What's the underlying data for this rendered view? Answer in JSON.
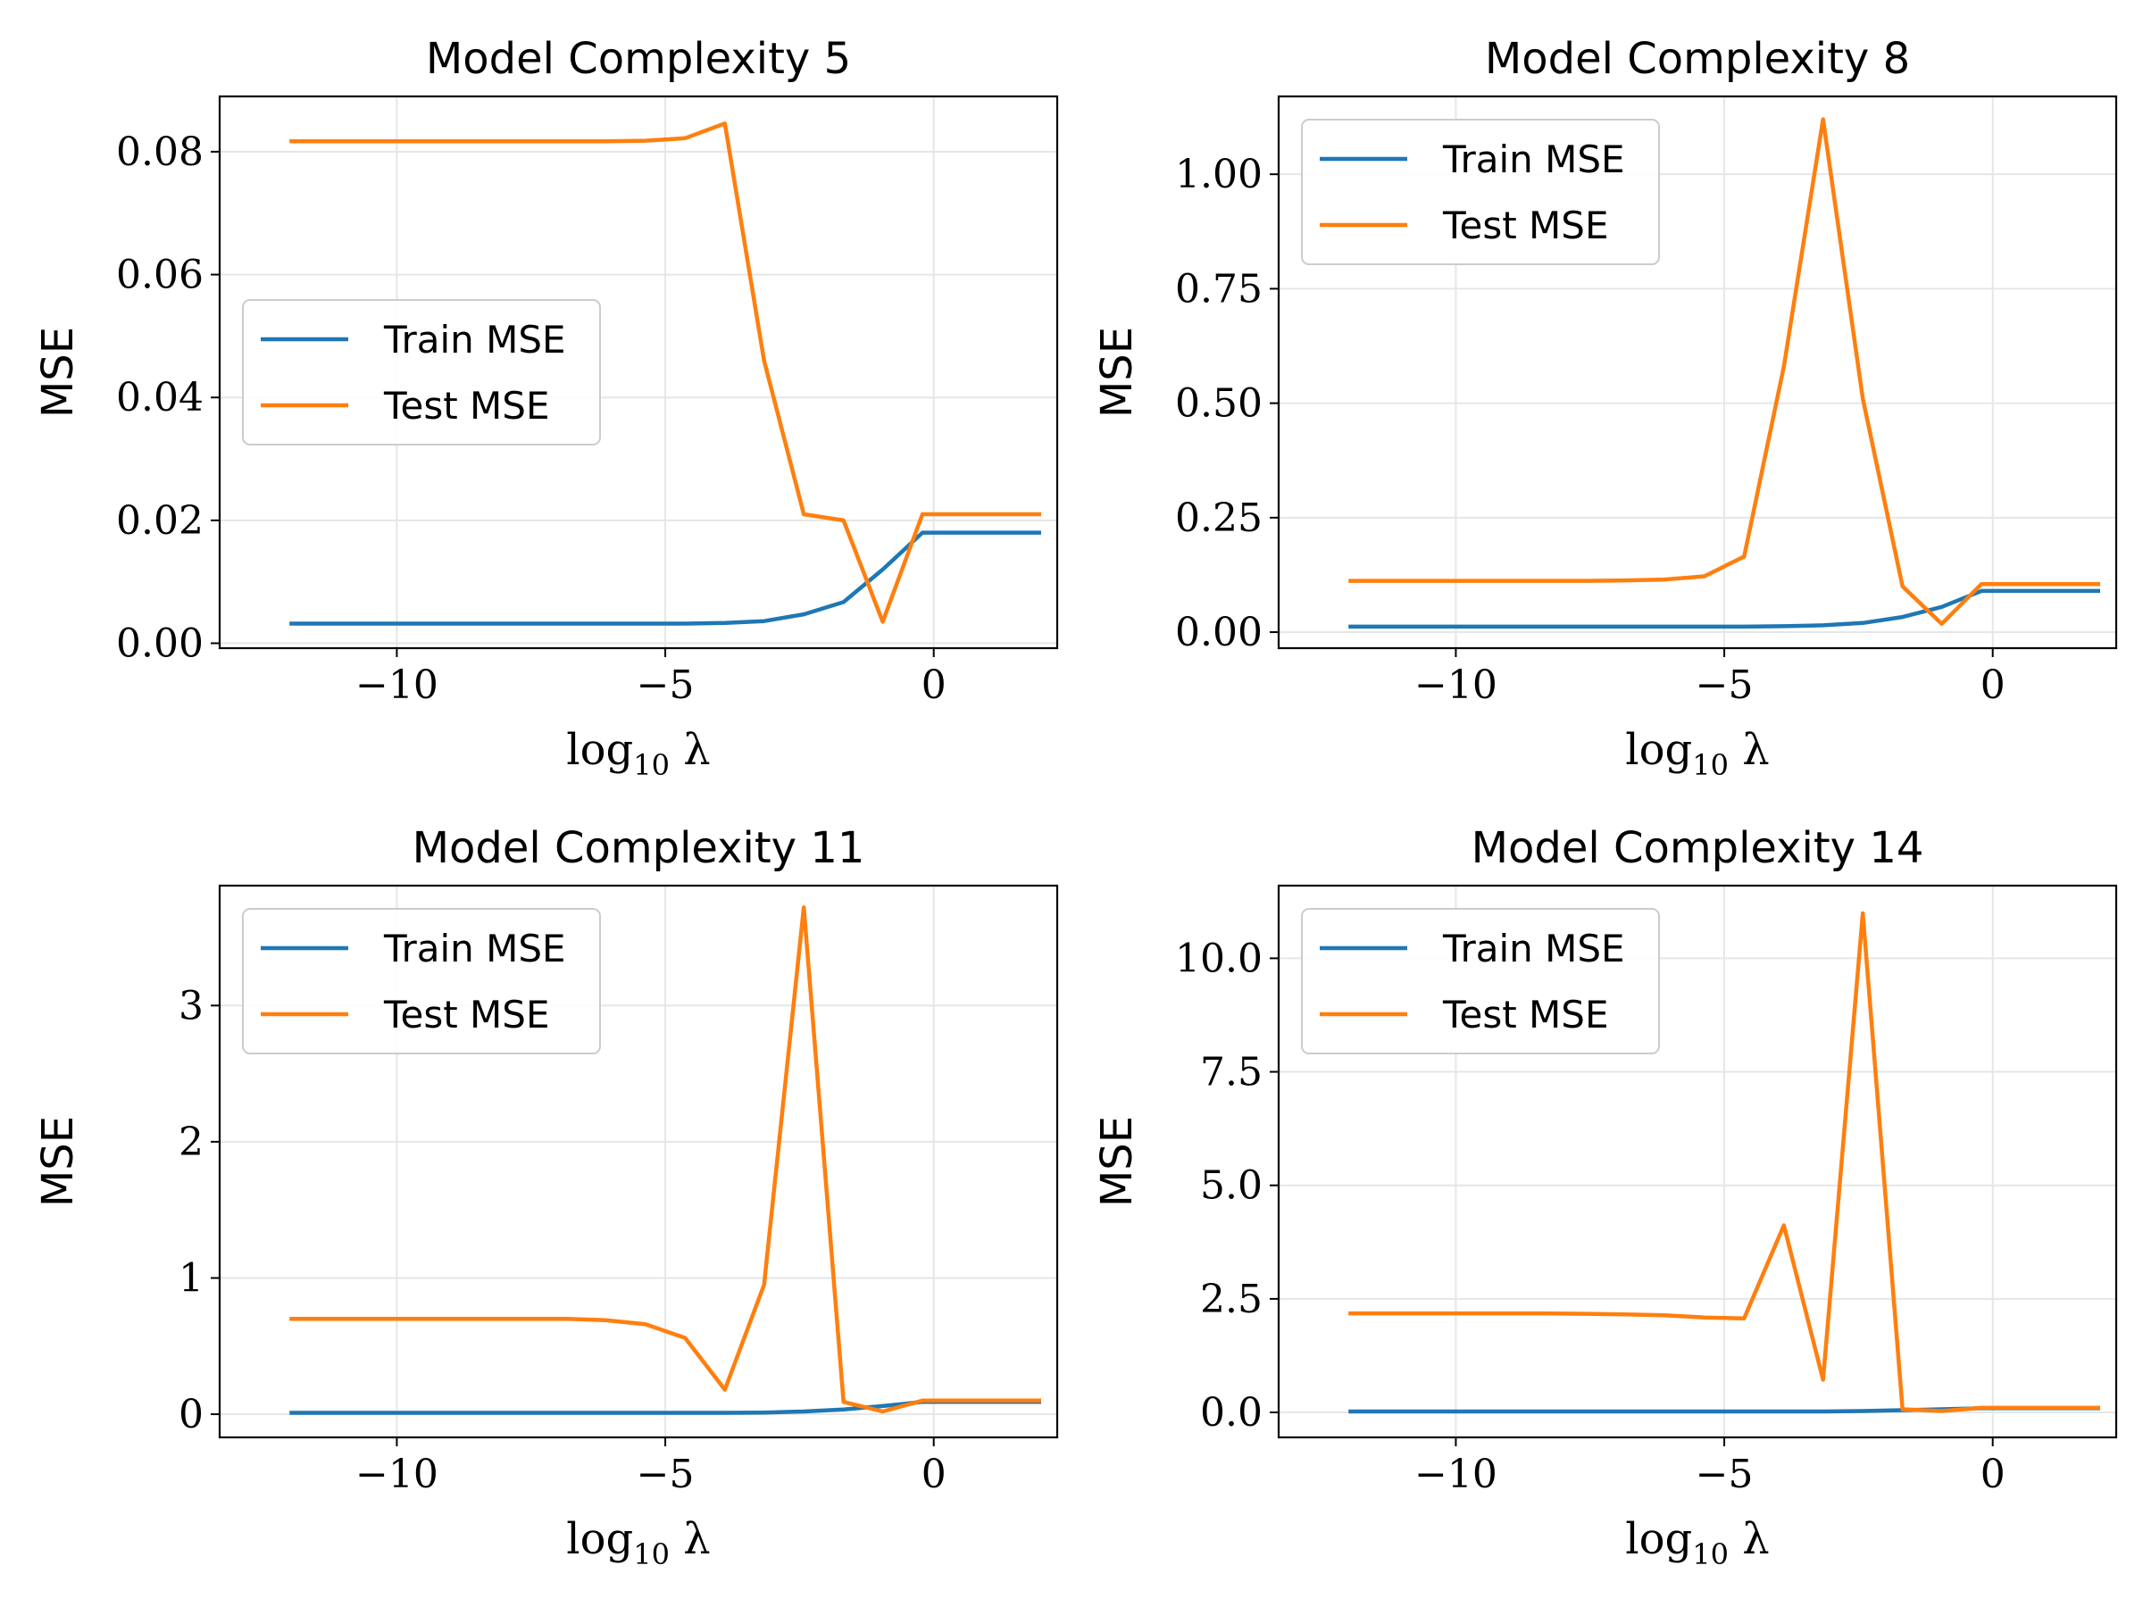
{
  "chart_data": [
    {
      "type": "line",
      "title": "Model Complexity 5",
      "xlabel": "log10 λ",
      "ylabel": "MSE",
      "xlim": [
        -13.3,
        2.3
      ],
      "ylim": [
        -0.0008,
        0.089
      ],
      "xticks": [
        -10,
        -5,
        0
      ],
      "xtick_labels": [
        "−10",
        "−5",
        "0"
      ],
      "yticks": [
        0.0,
        0.02,
        0.04,
        0.06,
        0.08
      ],
      "ytick_labels": [
        "0.00",
        "0.02",
        "0.04",
        "0.06",
        "0.08"
      ],
      "grid": true,
      "legend": "center-left",
      "x": [
        -12,
        -11.26,
        -10.53,
        -9.79,
        -9.05,
        -8.32,
        -7.58,
        -6.84,
        -6.11,
        -5.37,
        -4.63,
        -3.89,
        -3.16,
        -2.42,
        -1.68,
        -0.95,
        -0.21,
        0.53,
        1.26,
        2.0
      ],
      "series": [
        {
          "name": "Train MSE",
          "color": "#1f77b4",
          "values": [
            0.0032,
            0.0032,
            0.0032,
            0.0032,
            0.0032,
            0.0032,
            0.0032,
            0.0032,
            0.0032,
            0.0032,
            0.0032,
            0.0033,
            0.0036,
            0.0047,
            0.0067,
            0.012,
            0.018,
            0.018,
            0.018,
            0.018
          ]
        },
        {
          "name": "Test MSE",
          "color": "#ff7f0e",
          "values": [
            0.0817,
            0.0817,
            0.0817,
            0.0817,
            0.0817,
            0.0817,
            0.0817,
            0.0817,
            0.0817,
            0.0818,
            0.0822,
            0.0846,
            0.046,
            0.021,
            0.02,
            0.0035,
            0.021,
            0.021,
            0.021,
            0.021
          ]
        }
      ]
    },
    {
      "type": "line",
      "title": "Model Complexity 8",
      "xlabel": "log10 λ",
      "ylabel": "MSE",
      "xlim": [
        -13.3,
        2.3
      ],
      "ylim": [
        -0.035,
        1.17
      ],
      "xticks": [
        -10,
        -5,
        0
      ],
      "xtick_labels": [
        "−10",
        "−5",
        "0"
      ],
      "yticks": [
        0.0,
        0.25,
        0.5,
        0.75,
        1.0
      ],
      "ytick_labels": [
        "0.00",
        "0.25",
        "0.50",
        "0.75",
        "1.00"
      ],
      "grid": true,
      "legend": "top-left",
      "x": [
        -12,
        -11.26,
        -10.53,
        -9.79,
        -9.05,
        -8.32,
        -7.58,
        -6.84,
        -6.11,
        -5.37,
        -4.63,
        -3.89,
        -3.16,
        -2.42,
        -1.68,
        -0.95,
        -0.21,
        0.53,
        1.26,
        2.0
      ],
      "series": [
        {
          "name": "Train MSE",
          "color": "#1f77b4",
          "values": [
            0.012,
            0.012,
            0.012,
            0.012,
            0.012,
            0.012,
            0.012,
            0.012,
            0.012,
            0.012,
            0.012,
            0.013,
            0.015,
            0.02,
            0.033,
            0.055,
            0.09,
            0.09,
            0.09,
            0.09
          ]
        },
        {
          "name": "Test MSE",
          "color": "#ff7f0e",
          "values": [
            0.112,
            0.112,
            0.112,
            0.112,
            0.112,
            0.112,
            0.112,
            0.113,
            0.115,
            0.122,
            0.165,
            0.58,
            1.12,
            0.51,
            0.1,
            0.018,
            0.105,
            0.105,
            0.105,
            0.105
          ]
        }
      ]
    },
    {
      "type": "line",
      "title": "Model Complexity 11",
      "xlabel": "log10 λ",
      "ylabel": "MSE",
      "xlim": [
        -13.3,
        2.3
      ],
      "ylim": [
        -0.17,
        3.88
      ],
      "xticks": [
        -10,
        -5,
        0
      ],
      "xtick_labels": [
        "−10",
        "−5",
        "0"
      ],
      "yticks": [
        0,
        1,
        2,
        3
      ],
      "ytick_labels": [
        "0",
        "1",
        "2",
        "3"
      ],
      "grid": true,
      "legend": "top-left",
      "x": [
        -12,
        -11.26,
        -10.53,
        -9.79,
        -9.05,
        -8.32,
        -7.58,
        -6.84,
        -6.11,
        -5.37,
        -4.63,
        -3.89,
        -3.16,
        -2.42,
        -1.68,
        -0.95,
        -0.21,
        0.53,
        1.26,
        2.0
      ],
      "series": [
        {
          "name": "Train MSE",
          "color": "#1f77b4",
          "values": [
            0.01,
            0.01,
            0.01,
            0.01,
            0.01,
            0.01,
            0.01,
            0.01,
            0.01,
            0.01,
            0.01,
            0.01,
            0.012,
            0.02,
            0.035,
            0.06,
            0.09,
            0.09,
            0.09,
            0.09
          ]
        },
        {
          "name": "Test MSE",
          "color": "#ff7f0e",
          "values": [
            0.7,
            0.7,
            0.7,
            0.7,
            0.7,
            0.7,
            0.7,
            0.7,
            0.69,
            0.66,
            0.56,
            0.18,
            0.95,
            3.72,
            0.09,
            0.02,
            0.1,
            0.1,
            0.1,
            0.1
          ]
        }
      ]
    },
    {
      "type": "line",
      "title": "Model Complexity 14",
      "xlabel": "log10 λ",
      "ylabel": "MSE",
      "xlim": [
        -13.3,
        2.3
      ],
      "ylim": [
        -0.55,
        11.6
      ],
      "xticks": [
        -10,
        -5,
        0
      ],
      "xtick_labels": [
        "−10",
        "−5",
        "0"
      ],
      "yticks": [
        0.0,
        2.5,
        5.0,
        7.5,
        10.0
      ],
      "ytick_labels": [
        "0.0",
        "2.5",
        "5.0",
        "7.5",
        "10.0"
      ],
      "grid": true,
      "legend": "top-left",
      "x": [
        -12,
        -11.26,
        -10.53,
        -9.79,
        -9.05,
        -8.32,
        -7.58,
        -6.84,
        -6.11,
        -5.37,
        -4.63,
        -3.89,
        -3.16,
        -2.42,
        -1.68,
        -0.95,
        -0.21,
        0.53,
        1.26,
        2.0
      ],
      "series": [
        {
          "name": "Train MSE",
          "color": "#1f77b4",
          "values": [
            0.02,
            0.02,
            0.02,
            0.02,
            0.02,
            0.02,
            0.02,
            0.02,
            0.02,
            0.02,
            0.02,
            0.02,
            0.02,
            0.03,
            0.05,
            0.07,
            0.09,
            0.09,
            0.09,
            0.09
          ]
        },
        {
          "name": "Test MSE",
          "color": "#ff7f0e",
          "values": [
            2.18,
            2.18,
            2.18,
            2.18,
            2.18,
            2.18,
            2.17,
            2.16,
            2.14,
            2.09,
            2.07,
            4.12,
            0.72,
            10.99,
            0.07,
            0.03,
            0.1,
            0.1,
            0.1,
            0.1
          ]
        }
      ]
    }
  ]
}
